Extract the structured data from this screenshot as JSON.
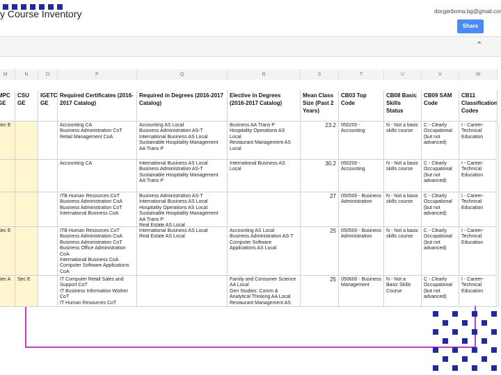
{
  "header": {
    "title": "y Course Inventory",
    "email": "docgerboma.bg@gmail.com",
    "share": "Share"
  },
  "table": {
    "columns": [
      "M",
      "N",
      "O",
      "P",
      "Q",
      "R",
      "S",
      "T",
      "U",
      "V",
      "W"
    ],
    "headers": [
      "MPC\nGE",
      "CSU\nGE",
      "IGETC\nGE",
      "Required Certificates (2016-2017 Catalog)",
      "Required in Degrees (2016-2017 Catalog)",
      "Elective in Degrees (2016-2017 Catalog)",
      "Mean Class Size (Past 2 Years)",
      "CB03 Top Code",
      "CB08 Basic Skills Status",
      "CB09 SAM Code",
      "CB11 Classification Codes"
    ],
    "rows": [
      [
        "Sec E",
        "",
        "",
        "Accounting CA\nBusiness Administration CoT\nRetail Management CoA",
        "Accounting AS Local\nBusiness Administration AS-T\nInternational Business AS Local\nSustainable Hospitality Management AA Trans P",
        "Business AA Trans P\nHospitality Operations AS Local\nRestaurant Management AS Local",
        23.2,
        "050200 - Accounting",
        "N - Not a basic skills course",
        "C - Clearly Occupational (but not advanced)",
        "I - Career-Technical Education"
      ],
      [
        "",
        "",
        "",
        "Accounting CA",
        "International Business AS Local\nBusiness Administration AS-T\nSustainable Hospitality Management AA Trans P",
        "International Business AS Local",
        30.2,
        "050200 - Accounting",
        "N - Not a basic skills course",
        "C - Clearly Occupational (but not advanced)",
        "I - Career-Technical Education"
      ],
      [
        "",
        "",
        "",
        "ITB Human Resources CoT\nBusiness Administration CoA\nBusiness Administration CoT\nInternational Business CoA",
        "Business Administration AS-T\nInternational Business AS Local\nHospitality Operations AS Local\nSustainable Hospitality Management AA Trans P\nReal Estate AS Local",
        "",
        27,
        "050500 - Business Administration",
        "N - Not a basic skills course",
        "C - Clearly Occupational (but not advanced)",
        "I - Career-Technical Education"
      ],
      [
        "Sec E",
        "",
        "",
        "ITB Human Resources CoT\nBusiness Administration CoA\nBusiness Administration CoT\nBusiness Office Administration CoA\nInternational Business CoA\nComputer Software Applications CoA",
        "International Business AS Local\nReal Estate AS Local",
        "Accounting AS Local\nBusiness Administration AS-T\nComputer Software Applications AS Local",
        25,
        "050500 - Business Administration",
        "N - Not a basic skills course",
        "C - Clearly Occupational (but not advanced)",
        "I - Career-Technical Education"
      ],
      [
        "Sec A",
        "Sec E",
        "",
        "IT Computer Retail Sales and Support CoT\nIT Business Information Worker CoT\nIT Human Resources CoT\nIT Leadership CoT\nBusiness Administration CoA\nBusiness Administration CoT",
        "",
        "Family and Consumer Science AA Local\nGen Studies: Comm & Analytical Thinking AA Local\nRestaurant Management AS Local",
        25,
        "050600 - Business Management",
        "N - Not a Basic Skills Course",
        "C - Clearly Occupational (but not advanced)",
        "I - Career-Technical Education"
      ]
    ]
  }
}
